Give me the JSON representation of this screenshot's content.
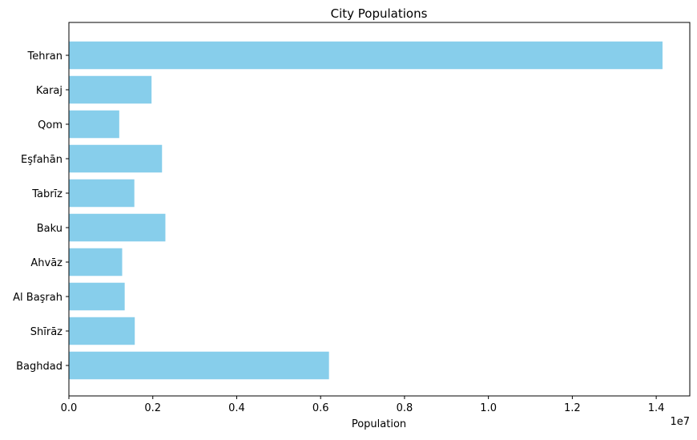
{
  "chart_data": {
    "type": "bar",
    "orientation": "horizontal",
    "title": "City Populations",
    "xlabel": "Population",
    "ylabel": "",
    "x_scale_note": "1e7",
    "xlim": [
      0,
      14800000
    ],
    "x_ticks": [
      0,
      2000000,
      4000000,
      6000000,
      8000000,
      10000000,
      12000000,
      14000000
    ],
    "x_tick_labels": [
      "0.0",
      "0.2",
      "0.4",
      "0.6",
      "0.8",
      "1.0",
      "1.2",
      "1.4"
    ],
    "categories": [
      "Baghdad",
      "Shīrāz",
      "Al Başrah",
      "Ahvāz",
      "Baku",
      "Tabrīz",
      "Eşfahān",
      "Qom",
      "Karaj",
      "Tehran"
    ],
    "values": [
      6200000,
      1570000,
      1330000,
      1270000,
      2300000,
      1560000,
      2220000,
      1200000,
      1970000,
      14150000
    ],
    "bar_color": "#87ceeb",
    "grid": false,
    "legend": "none"
  }
}
